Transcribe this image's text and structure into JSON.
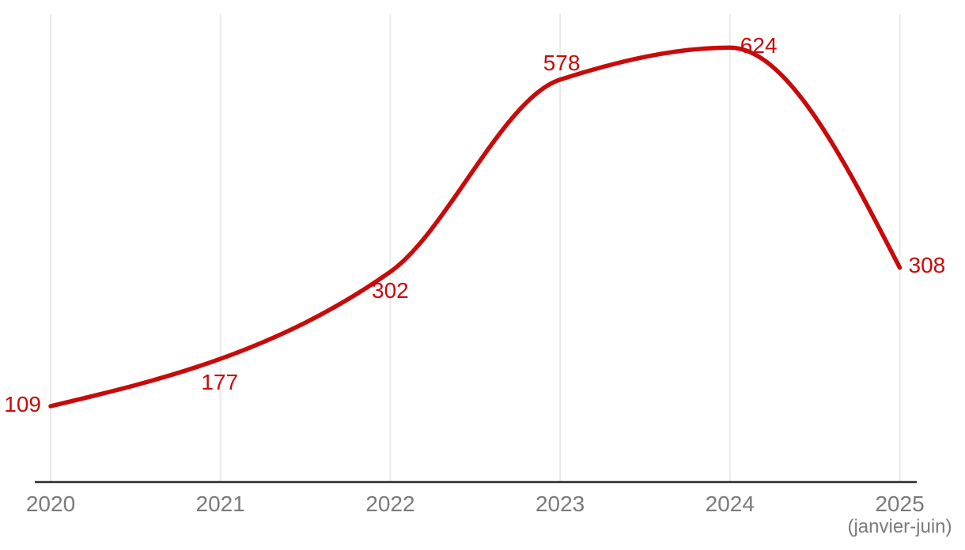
{
  "chart_data": {
    "type": "line",
    "title": "",
    "xlabel": "",
    "ylabel": "",
    "categories": [
      "2020",
      "2021",
      "2022",
      "2023",
      "2024",
      "2025"
    ],
    "x_axis_note": "(janvier-juin)",
    "values": [
      109,
      177,
      302,
      578,
      624,
      308
    ],
    "data_labels": [
      "109",
      "177",
      "302",
      "578",
      "624",
      "308"
    ],
    "ylim": [
      0,
      672
    ],
    "grid": "vertical-gridlines-only",
    "legend": "none",
    "curve": "smooth-monotone",
    "colors": {
      "line": "#c80a0a",
      "data_label": "#c80a0a",
      "tick_label": "#7a7a7a",
      "axis_line": "#2d2d2d",
      "gridline": "#e9e9e9",
      "background": "#ffffff"
    }
  }
}
